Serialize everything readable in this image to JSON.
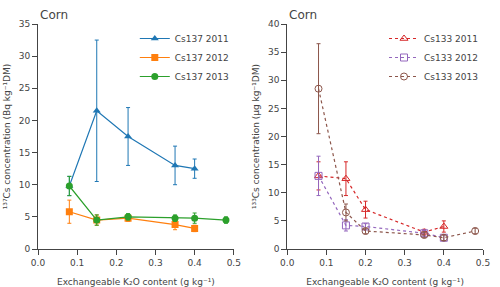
{
  "chart_data": [
    {
      "type": "line",
      "annotations": [
        "Corn"
      ],
      "x_label": "Exchangeable K₂O content (g kg⁻¹)",
      "y_label": "¹³⁷Cs concentration (Bq kg⁻¹DM)",
      "xlim": [
        0.0,
        0.5
      ],
      "xticks": [
        {
          "value": 0.0,
          "label": "0.0"
        },
        0.1,
        0.2,
        0.3,
        0.4,
        0.5
      ],
      "ylim": [
        0,
        35
      ],
      "yticks": [
        0,
        5,
        10,
        15,
        20,
        25,
        30,
        35
      ],
      "grid": false,
      "legend": "upper right",
      "series": [
        {
          "name": "Cs137 2011",
          "marker": "triangle-up",
          "line_style": "solid",
          "x": [
            0.08,
            0.15,
            0.23,
            0.35,
            0.4
          ],
          "values": [
            9.8,
            21.5,
            17.5,
            13.0,
            12.5
          ],
          "errors": [
            1.5,
            11.0,
            4.5,
            3.0,
            1.5
          ]
        },
        {
          "name": "Cs137 2012",
          "marker": "square",
          "line_style": "solid",
          "x": [
            0.08,
            0.15,
            0.23,
            0.35,
            0.4
          ],
          "values": [
            5.8,
            4.5,
            4.8,
            3.8,
            3.2
          ],
          "errors": [
            1.8,
            0.8,
            0.5,
            0.8,
            0.5
          ]
        },
        {
          "name": "Cs137 2013",
          "marker": "circle",
          "line_style": "solid",
          "x": [
            0.08,
            0.15,
            0.23,
            0.35,
            0.4,
            0.48
          ],
          "values": [
            9.8,
            4.5,
            5.0,
            4.8,
            4.8,
            4.5
          ],
          "errors": [
            1.5,
            0.8,
            0.5,
            0.5,
            0.8,
            0.5
          ]
        }
      ]
    },
    {
      "type": "line",
      "annotations": [
        "Corn"
      ],
      "x_label": "Exchangeable K₂O content (g kg⁻¹)",
      "y_label": "¹³³Cs concentration (μg kg⁻¹DM)",
      "xlim": [
        0.0,
        0.5
      ],
      "xticks": [
        {
          "value": 0.0,
          "label": "0.0"
        },
        0.1,
        0.2,
        0.3,
        0.4,
        0.5
      ],
      "ylim": [
        0,
        40
      ],
      "yticks": [
        0,
        5,
        10,
        15,
        20,
        25,
        30,
        35,
        40
      ],
      "grid": false,
      "legend": "upper right",
      "series": [
        {
          "name": "Cs133 2011",
          "marker": "triangle-up-open",
          "line_style": "dotted",
          "x": [
            0.08,
            0.15,
            0.2,
            0.35,
            0.4
          ],
          "values": [
            13.0,
            12.5,
            7.0,
            3.0,
            4.0
          ],
          "errors": [
            2.5,
            3.0,
            1.5,
            0.5,
            1.0
          ]
        },
        {
          "name": "Cs133 2012",
          "marker": "square-open",
          "line_style": "dotted",
          "x": [
            0.08,
            0.15,
            0.2,
            0.35,
            0.4
          ],
          "values": [
            13.0,
            4.2,
            4.0,
            2.8,
            2.0
          ],
          "errors": [
            3.5,
            1.0,
            0.5,
            0.5,
            0.5
          ]
        },
        {
          "name": "Cs133 2013",
          "marker": "circle-open",
          "line_style": "dotted",
          "x": [
            0.08,
            0.15,
            0.2,
            0.35,
            0.4,
            0.48
          ],
          "values": [
            28.5,
            6.5,
            3.2,
            2.5,
            2.0,
            3.2
          ],
          "errors": [
            8.0,
            1.5,
            0.5,
            0.5,
            0.5,
            0.5
          ]
        }
      ]
    }
  ]
}
